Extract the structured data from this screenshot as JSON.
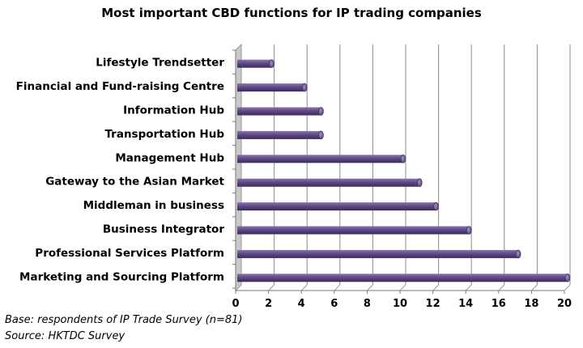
{
  "title": "Most important CBD functions for IP trading companies",
  "footnotes": {
    "base": "Base: respondents of IP Trade Survey (n=81)",
    "source": "Source: HKTDC Survey"
  },
  "colors": {
    "bar": "#5f4a85",
    "bar_dark": "#3b2b5a",
    "bar_light": "#8a76ad",
    "grid": "#8c8c8c",
    "floor": "#c9c9c9"
  },
  "chart_data": {
    "type": "bar",
    "orientation": "horizontal",
    "title": "Most important CBD functions for IP trading companies",
    "categories": [
      "Lifestyle Trendsetter",
      "Financial and Fund-raising Centre",
      "Information Hub",
      "Transportation Hub",
      "Management Hub",
      "Gateway to the Asian Market",
      "Middleman in business",
      "Business Integrator",
      "Professional Services Platform",
      "Marketing and Sourcing Platform"
    ],
    "values": [
      2,
      4,
      5,
      5,
      10,
      11,
      12,
      14,
      17,
      20
    ],
    "xlim": [
      0,
      20
    ],
    "xticks": [
      "0",
      "2",
      "4",
      "6",
      "8",
      "10",
      "12",
      "14",
      "16",
      "18",
      "20"
    ],
    "grid": true,
    "legend": "none"
  }
}
